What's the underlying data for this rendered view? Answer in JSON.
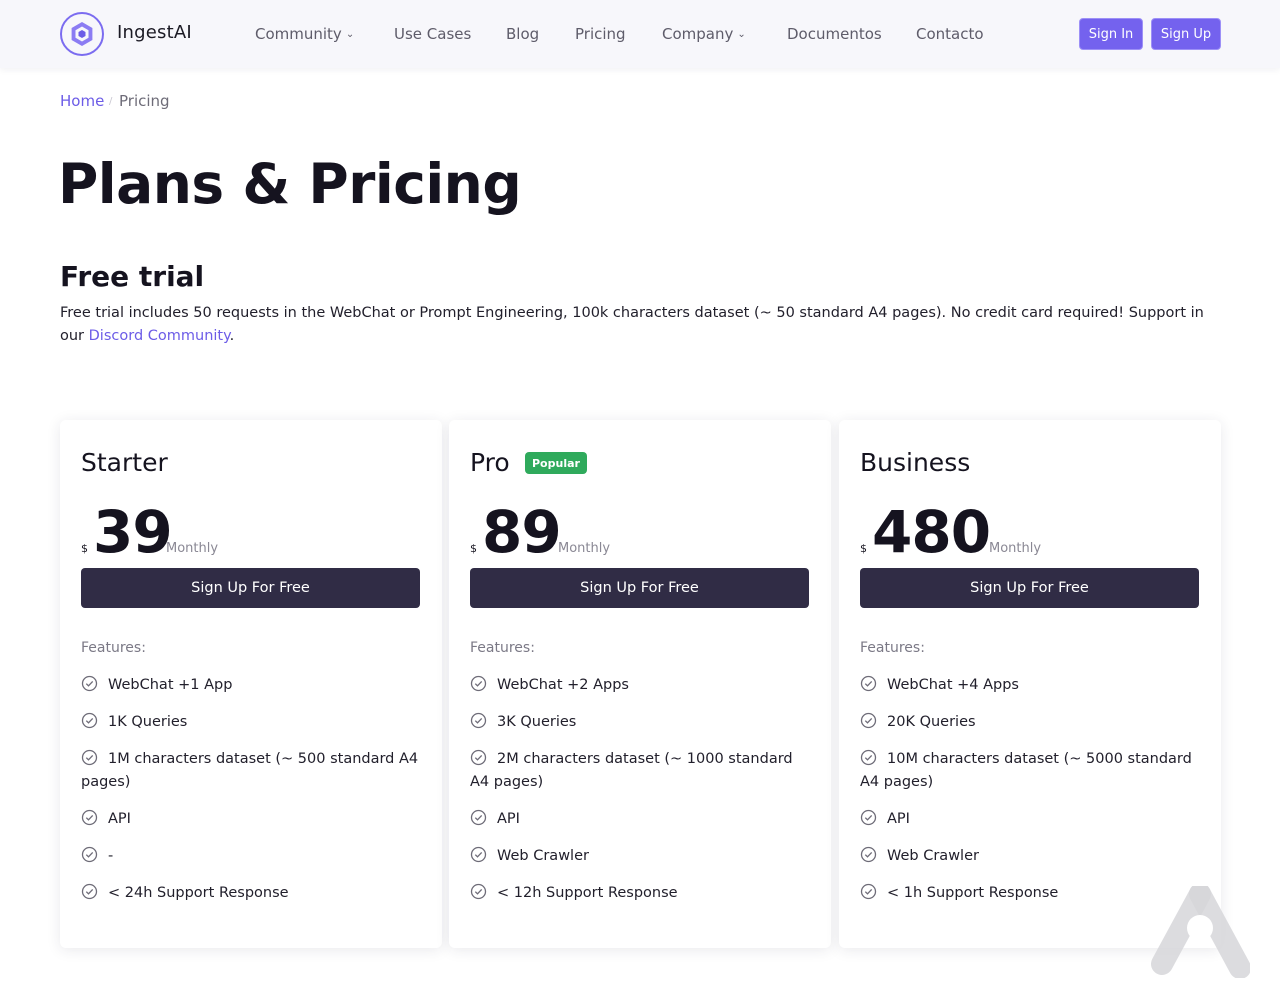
{
  "header": {
    "brand": "IngestAI",
    "nav": [
      {
        "label": "Community",
        "dropdown": true
      },
      {
        "label": "Use Cases",
        "dropdown": false
      },
      {
        "label": "Blog",
        "dropdown": false
      },
      {
        "label": "Pricing",
        "dropdown": false
      },
      {
        "label": "Company",
        "dropdown": true
      },
      {
        "label": "Documentos",
        "dropdown": false
      },
      {
        "label": "Contacto",
        "dropdown": false
      }
    ],
    "sign_in": "Sign In",
    "sign_up": "Sign Up"
  },
  "breadcrumb": {
    "home": "Home",
    "current": "Pricing"
  },
  "page": {
    "title": "Plans & Pricing",
    "subtitle": "Free trial",
    "description": "Free trial includes 50 requests in the WebChat or Prompt Engineering, 100k characters dataset (~ 50 standard A4 pages). No credit card required! Support in our ",
    "description_link": "Discord Community",
    "description_end": "."
  },
  "plans": [
    {
      "name": "Starter",
      "badge": "",
      "currency": "$",
      "price": "39",
      "period": "Monthly",
      "cta": "Sign Up For Free",
      "features_label": "Features:",
      "features": [
        "WebChat +1 App",
        "1K Queries",
        "1M characters dataset (~ 500 standard A4 pages)",
        "API",
        "-",
        "< 24h Support Response"
      ]
    },
    {
      "name": "Pro",
      "badge": "Popular",
      "currency": "$",
      "price": "89",
      "period": "Monthly",
      "cta": "Sign Up For Free",
      "features_label": "Features:",
      "features": [
        "WebChat +2 Apps",
        "3K Queries",
        "2M characters dataset (~ 1000 standard A4 pages)",
        "API",
        "Web Crawler",
        "< 12h Support Response"
      ]
    },
    {
      "name": "Business",
      "badge": "",
      "currency": "$",
      "price": "480",
      "period": "Monthly",
      "cta": "Sign Up For Free",
      "features_label": "Features:",
      "features": [
        "WebChat +4 Apps",
        "20K Queries",
        "10M characters dataset (~ 5000 standard A4 pages)",
        "API",
        "Web Crawler",
        "< 1h Support Response"
      ]
    }
  ],
  "icons": {
    "logo": "hexagon-logo-icon",
    "check": "check-circle-icon",
    "dropdown": "chevron-down-icon",
    "watermark": "a-logo-watermark-icon"
  },
  "colors": {
    "accent": "#7462ee",
    "cta": "#302c45",
    "badge": "#2faa5c",
    "link": "#6c5ce7"
  }
}
